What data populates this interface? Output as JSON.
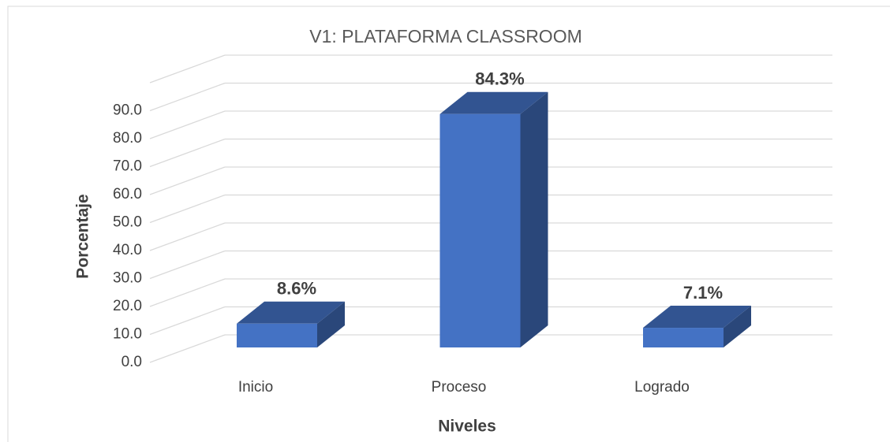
{
  "chart_data": {
    "type": "bar3d",
    "title": "V1: PLATAFORMA CLASSROOM",
    "x_label": "Niveles",
    "y_label": "Porcentaje",
    "categories": [
      "Inicio",
      "Proceso",
      "Logrado"
    ],
    "values": [
      8.6,
      84.3,
      7.1
    ],
    "value_labels": [
      "8.6%",
      "84.3%",
      "7.1%"
    ],
    "color": "#4472c4",
    "ylim": [
      0,
      100
    ],
    "yticks": [
      {
        "value": 0,
        "label": "0.0"
      },
      {
        "value": 10,
        "label": "10.0"
      },
      {
        "value": 20,
        "label": "20.0"
      },
      {
        "value": 30,
        "label": "30.0"
      },
      {
        "value": 40,
        "label": "40.0"
      },
      {
        "value": 50,
        "label": "50.0"
      },
      {
        "value": 60,
        "label": "60.0"
      },
      {
        "value": 70,
        "label": "70.0"
      },
      {
        "value": 80,
        "label": "80.0"
      },
      {
        "value": 90,
        "label": "90.0"
      }
    ],
    "grid": true
  }
}
